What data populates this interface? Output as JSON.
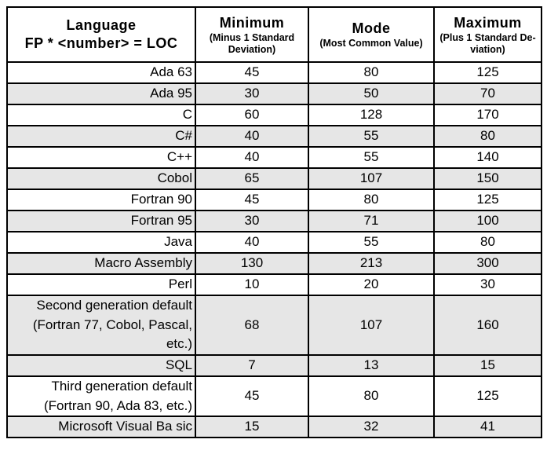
{
  "table": {
    "header": {
      "language_line1": "Language",
      "language_line2": "FP * <number> = LOC",
      "columns": [
        {
          "title": "Minimum",
          "subtitle": "(Minus 1 Standard Deviation)"
        },
        {
          "title": "Mode",
          "subtitle": "(Most Common Value)"
        },
        {
          "title": "Maximum",
          "subtitle": "(Plus 1 Standard De-viation)"
        }
      ]
    },
    "rows": [
      {
        "language": "Ada 63",
        "minimum": 45,
        "mode": 80,
        "maximum": 125,
        "shaded": false
      },
      {
        "language": "Ada 95",
        "minimum": 30,
        "mode": 50,
        "maximum": 70,
        "shaded": true
      },
      {
        "language": "C",
        "minimum": 60,
        "mode": 128,
        "maximum": 170,
        "shaded": false
      },
      {
        "language": "C#",
        "minimum": 40,
        "mode": 55,
        "maximum": 80,
        "shaded": true
      },
      {
        "language": "C++",
        "minimum": 40,
        "mode": 55,
        "maximum": 140,
        "shaded": false
      },
      {
        "language": "Cobol",
        "minimum": 65,
        "mode": 107,
        "maximum": 150,
        "shaded": true
      },
      {
        "language": "Fortran 90",
        "minimum": 45,
        "mode": 80,
        "maximum": 125,
        "shaded": false
      },
      {
        "language": "Fortran 95",
        "minimum": 30,
        "mode": 71,
        "maximum": 100,
        "shaded": true
      },
      {
        "language": "Java",
        "minimum": 40,
        "mode": 55,
        "maximum": 80,
        "shaded": false
      },
      {
        "language": "Macro Assembly",
        "minimum": 130,
        "mode": 213,
        "maximum": 300,
        "shaded": true
      },
      {
        "language": "Perl",
        "minimum": 10,
        "mode": 20,
        "maximum": 30,
        "shaded": false
      },
      {
        "language": "Second generation default (Fortran 77, Cobol, Pascal, etc.)",
        "minimum": 68,
        "mode": 107,
        "maximum": 160,
        "shaded": true
      },
      {
        "language": "SQL",
        "minimum": 7,
        "mode": 13,
        "maximum": 15,
        "shaded": true
      },
      {
        "language": "Third generation default (Fortran 90, Ada 83, etc.)",
        "minimum": 45,
        "mode": 80,
        "maximum": 125,
        "shaded": false
      },
      {
        "language": "Microsoft Visual Ba sic",
        "minimum": 15,
        "mode": 32,
        "maximum": 41,
        "shaded": true
      }
    ],
    "colors": {
      "shaded_row": "#e6e6e6",
      "border": "#000000",
      "background": "#ffffff",
      "text": "#000000"
    }
  }
}
